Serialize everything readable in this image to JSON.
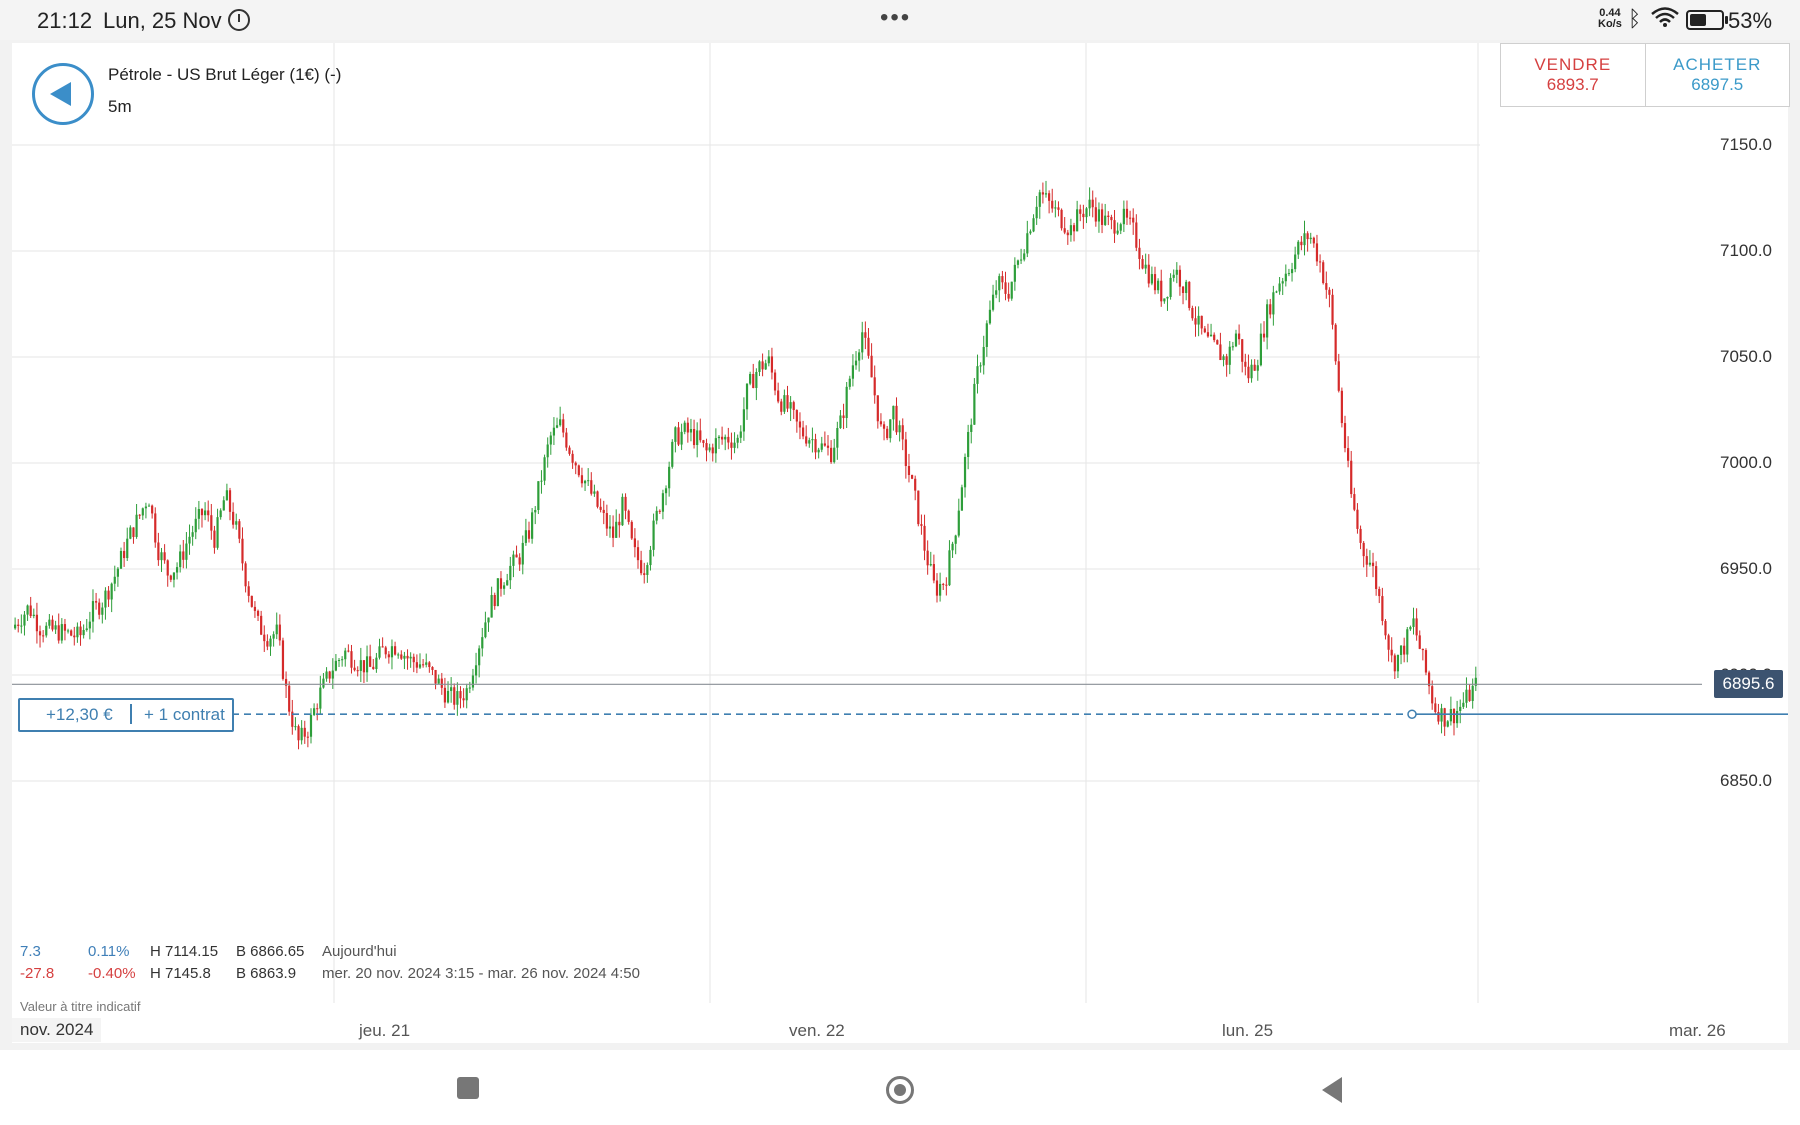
{
  "status_bar": {
    "time": "21:12",
    "date": "Lun, 25 Nov",
    "more": "•••",
    "net_speed_value": "0.44",
    "net_speed_unit": "Ko/s",
    "battery_pct": "53%",
    "battery_level": 0.53
  },
  "instrument": {
    "name": "Pétrole - US Brut Léger (1€) (-)",
    "interval": "5m"
  },
  "trade": {
    "sell_label": "VENDRE",
    "sell_price": "6893.7",
    "buy_label": "ACHETER",
    "buy_price": "6897.5"
  },
  "current_price": "6895.6",
  "position": {
    "pnl": "+12,30 €",
    "quantity": "+ 1 contrat",
    "entry_level": 6881.5
  },
  "stats": {
    "row1": {
      "change": "7.3",
      "change_pct": "0.11%",
      "high": "H 7114.15",
      "low": "B 6866.65",
      "label": "Aujourd'hui"
    },
    "row2": {
      "change": "-27.8",
      "change_pct": "-0.40%",
      "high": "H 7145.8",
      "low": "B 6863.9",
      "label": "mer. 20 nov. 2024 3:15 - mar. 26 nov. 2024 4:50"
    }
  },
  "disclaimer": "Valeur à titre indicatif",
  "x_axis": {
    "month": "nov. 2024",
    "ticks": [
      "jeu. 21",
      "ven. 22",
      "lun. 25",
      "mar. 26"
    ]
  },
  "colors": {
    "up": "#2e9e3a",
    "down": "#d52a2a",
    "accent": "#3b8ec9",
    "price_tag": "#3c5370"
  },
  "chart_data": {
    "type": "candlestick",
    "ylim": [
      6825,
      7175
    ],
    "y_ticks": [
      6850.0,
      6900.0,
      6950.0,
      7000.0,
      7050.0,
      7100.0,
      7150.0
    ],
    "x_categories": [
      "jeu. 21",
      "ven. 22",
      "lun. 25",
      "mar. 26"
    ],
    "close_path": [
      [
        0.0,
        6922
      ],
      [
        0.013,
        6932
      ],
      [
        0.022,
        6922
      ],
      [
        0.04,
        6920
      ],
      [
        0.052,
        6918
      ],
      [
        0.062,
        6930
      ],
      [
        0.07,
        6935
      ],
      [
        0.08,
        6948
      ],
      [
        0.09,
        6965
      ],
      [
        0.098,
        6975
      ],
      [
        0.105,
        6985
      ],
      [
        0.112,
        6960
      ],
      [
        0.12,
        6948
      ],
      [
        0.128,
        6952
      ],
      [
        0.136,
        6965
      ],
      [
        0.148,
        6978
      ],
      [
        0.156,
        6964
      ],
      [
        0.164,
        6985
      ],
      [
        0.172,
        6970
      ],
      [
        0.18,
        6945
      ],
      [
        0.188,
        6925
      ],
      [
        0.196,
        6918
      ],
      [
        0.204,
        6920
      ],
      [
        0.212,
        6888
      ],
      [
        0.22,
        6868
      ],
      [
        0.228,
        6875
      ],
      [
        0.236,
        6890
      ],
      [
        0.246,
        6903
      ],
      [
        0.256,
        6911
      ],
      [
        0.266,
        6906
      ],
      [
        0.276,
        6903
      ],
      [
        0.286,
        6912
      ],
      [
        0.296,
        6914
      ],
      [
        0.306,
        6907
      ],
      [
        0.316,
        6905
      ],
      [
        0.326,
        6898
      ],
      [
        0.334,
        6891
      ],
      [
        0.342,
        6888
      ],
      [
        0.35,
        6893
      ],
      [
        0.358,
        6912
      ],
      [
        0.366,
        6930
      ],
      [
        0.374,
        6941
      ],
      [
        0.382,
        6950
      ],
      [
        0.39,
        6955
      ],
      [
        0.398,
        6968
      ],
      [
        0.406,
        6990
      ],
      [
        0.414,
        7012
      ],
      [
        0.422,
        7018
      ],
      [
        0.43,
        7005
      ],
      [
        0.438,
        6995
      ],
      [
        0.446,
        6985
      ],
      [
        0.454,
        6975
      ],
      [
        0.462,
        6965
      ],
      [
        0.47,
        6980
      ],
      [
        0.478,
        6958
      ],
      [
        0.486,
        6950
      ],
      [
        0.494,
        6970
      ],
      [
        0.502,
        6990
      ],
      [
        0.51,
        7012
      ],
      [
        0.518,
        7015
      ],
      [
        0.526,
        7012
      ],
      [
        0.534,
        7005
      ],
      [
        0.542,
        7010
      ],
      [
        0.55,
        7012
      ],
      [
        0.558,
        7010
      ],
      [
        0.566,
        7035
      ],
      [
        0.574,
        7045
      ],
      [
        0.582,
        7048
      ],
      [
        0.59,
        7030
      ],
      [
        0.598,
        7025
      ],
      [
        0.606,
        7015
      ],
      [
        0.614,
        7012
      ],
      [
        0.622,
        7008
      ],
      [
        0.63,
        7005
      ],
      [
        0.638,
        7020
      ],
      [
        0.646,
        7045
      ],
      [
        0.654,
        7062
      ],
      [
        0.662,
        7038
      ],
      [
        0.67,
        7010
      ],
      [
        0.678,
        7025
      ],
      [
        0.686,
        7005
      ],
      [
        0.694,
        6985
      ],
      [
        0.702,
        6960
      ],
      [
        0.71,
        6940
      ],
      [
        0.718,
        6945
      ],
      [
        0.726,
        6970
      ],
      [
        0.734,
        7005
      ],
      [
        0.742,
        7040
      ],
      [
        0.75,
        7065
      ],
      [
        0.758,
        7085
      ],
      [
        0.766,
        7080
      ],
      [
        0.774,
        7095
      ],
      [
        0.782,
        7110
      ],
      [
        0.79,
        7128
      ],
      [
        0.798,
        7122
      ],
      [
        0.806,
        7116
      ],
      [
        0.814,
        7110
      ],
      [
        0.822,
        7118
      ],
      [
        0.83,
        7122
      ],
      [
        0.838,
        7115
      ],
      [
        0.846,
        7112
      ],
      [
        0.854,
        7116
      ],
      [
        0.862,
        7110
      ],
      [
        0.87,
        7095
      ],
      [
        0.878,
        7085
      ],
      [
        0.886,
        7078
      ],
      [
        0.894,
        7092
      ],
      [
        0.902,
        7083
      ],
      [
        0.91,
        7068
      ],
      [
        0.918,
        7058
      ],
      [
        0.926,
        7054
      ],
      [
        0.934,
        7048
      ],
      [
        0.942,
        7062
      ],
      [
        0.95,
        7040
      ],
      [
        0.958,
        7050
      ],
      [
        0.966,
        7072
      ],
      [
        0.974,
        7085
      ],
      [
        0.982,
        7092
      ],
      [
        0.99,
        7102
      ],
      [
        0.998,
        7108
      ],
      [
        1.006,
        7095
      ],
      [
        1.014,
        7075
      ],
      [
        1.022,
        7025
      ],
      [
        1.03,
        6985
      ],
      [
        1.038,
        6960
      ],
      [
        1.046,
        6952
      ],
      [
        1.054,
        6930
      ],
      [
        1.062,
        6905
      ],
      [
        1.07,
        6912
      ],
      [
        1.078,
        6925
      ],
      [
        1.086,
        6905
      ],
      [
        1.094,
        6885
      ],
      [
        1.102,
        6880
      ],
      [
        1.11,
        6882
      ],
      [
        1.118,
        6888
      ],
      [
        1.126,
        6895
      ]
    ]
  }
}
